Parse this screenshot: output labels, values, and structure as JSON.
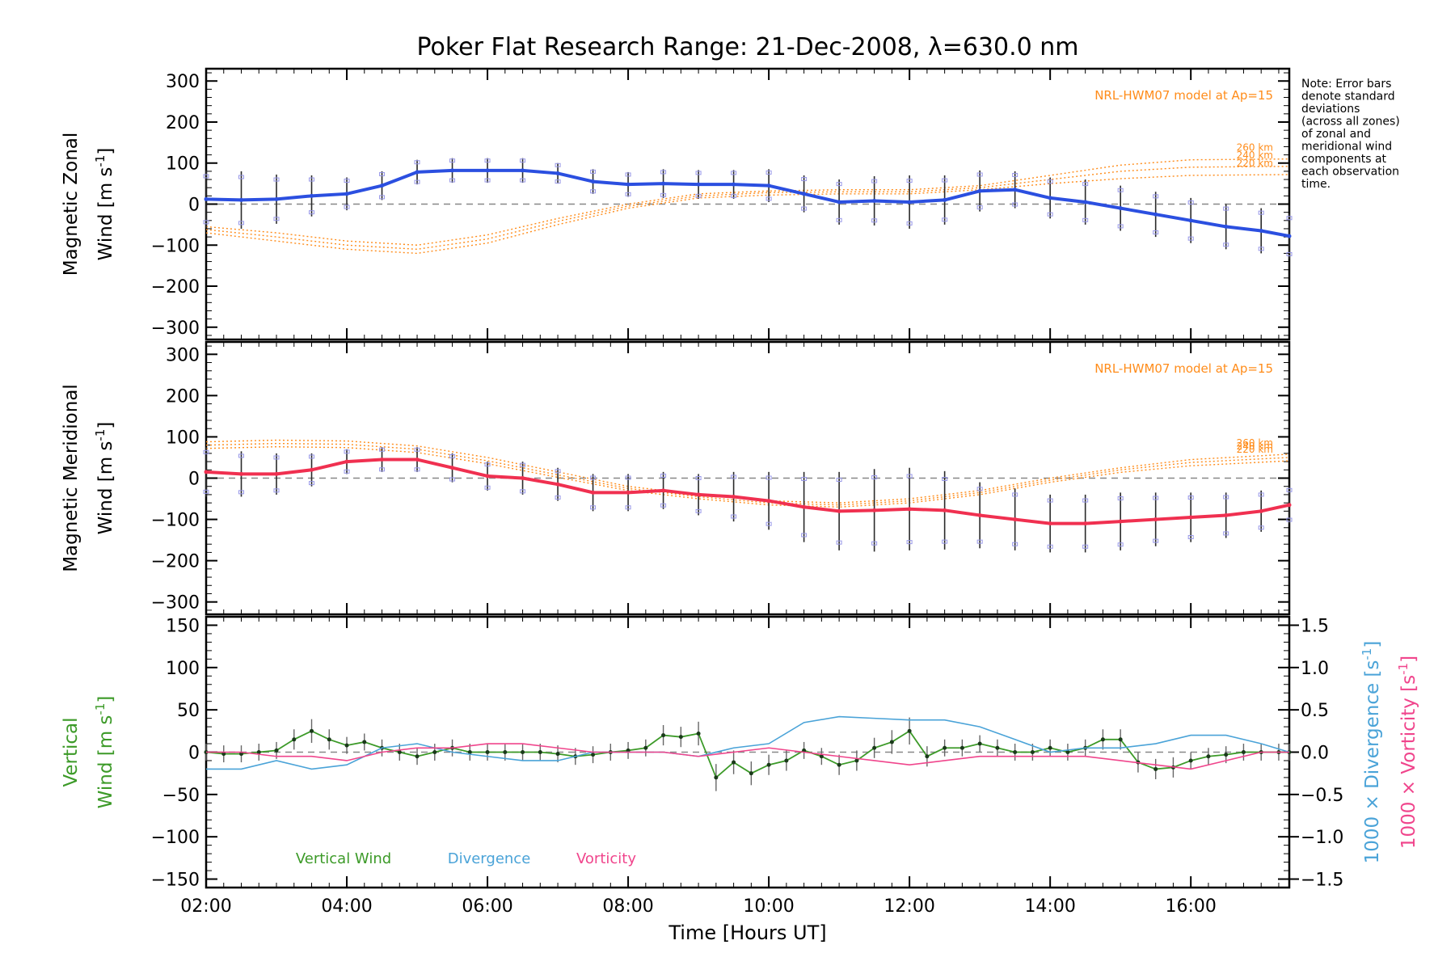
{
  "title": "Poker Flat Research Range: 21-Dec-2008, λ=630.0 nm",
  "note_lines": [
    "Note: Error bars",
    "denote standard",
    "deviations",
    "(across all zones)",
    "of zonal and",
    "meridional wind",
    "components at",
    "each observation",
    "time."
  ],
  "colors": {
    "zonal": "#2b4fe0",
    "meridional": "#f03050",
    "vertical": "#3c9a28",
    "divergence": "#4aa3d8",
    "vorticity": "#f0458c",
    "model": "#ff8c1a",
    "errorbar": "#2a2a2a",
    "zone_marker": "#9898e8"
  },
  "chart_data": [
    {
      "type": "line",
      "panel": "zonal",
      "ylabel_lines": [
        "Magnetic Zonal",
        "Wind [m s^-1]"
      ],
      "ylim": [
        -330,
        330
      ],
      "yticks": [
        "300",
        "200",
        "100",
        "0",
        "−100",
        "−200",
        "−300"
      ],
      "model_label": "NRL-HWM07 model at Ap=15",
      "model_curves": [
        {
          "label": "260 km",
          "x": [
            2,
            3,
            4,
            5,
            6,
            7,
            8,
            9,
            10,
            11,
            12,
            13,
            14,
            15,
            16,
            17.4
          ],
          "y": [
            -55,
            -70,
            -90,
            -100,
            -75,
            -35,
            0,
            25,
            32,
            35,
            35,
            45,
            70,
            95,
            108,
            110
          ]
        },
        {
          "label": "240 km",
          "x": [
            2,
            3,
            4,
            5,
            6,
            7,
            8,
            9,
            10,
            11,
            12,
            13,
            14,
            15,
            16,
            17.4
          ],
          "y": [
            -62,
            -80,
            -100,
            -110,
            -85,
            -42,
            -5,
            20,
            28,
            30,
            30,
            40,
            60,
            80,
            90,
            92
          ]
        },
        {
          "label": "220 km",
          "x": [
            2,
            3,
            4,
            5,
            6,
            7,
            8,
            9,
            10,
            11,
            12,
            13,
            14,
            15,
            16,
            17.4
          ],
          "y": [
            -70,
            -90,
            -110,
            -120,
            -95,
            -50,
            -10,
            15,
            22,
            25,
            25,
            35,
            50,
            62,
            70,
            72
          ]
        }
      ],
      "series": [
        {
          "name": "Zonal Wind",
          "x": [
            2,
            2.5,
            3,
            3.5,
            4,
            4.5,
            5,
            5.5,
            6,
            6.5,
            7,
            7.5,
            8,
            8.5,
            9,
            9.5,
            10,
            10.5,
            11,
            11.5,
            12,
            12.5,
            13,
            13.5,
            14,
            14.5,
            15,
            15.5,
            16,
            16.5,
            17,
            17.4
          ],
          "y": [
            12,
            10,
            12,
            20,
            25,
            45,
            78,
            82,
            82,
            82,
            75,
            55,
            48,
            50,
            48,
            48,
            45,
            25,
            5,
            8,
            5,
            10,
            32,
            35,
            15,
            5,
            -10,
            -25,
            -40,
            -55,
            -65,
            -78
          ],
          "err": [
            70,
            70,
            60,
            50,
            40,
            35,
            30,
            30,
            30,
            30,
            25,
            30,
            30,
            35,
            35,
            35,
            40,
            45,
            55,
            60,
            65,
            60,
            50,
            45,
            50,
            55,
            55,
            55,
            55,
            55,
            55,
            55
          ]
        }
      ]
    },
    {
      "type": "line",
      "panel": "meridional",
      "ylabel_lines": [
        "Magnetic Meridional",
        "Wind [m s^-1]"
      ],
      "ylim": [
        -330,
        330
      ],
      "yticks": [
        "300",
        "200",
        "100",
        "0",
        "−100",
        "−200",
        "−300"
      ],
      "model_label": "NRL-HWM07 model at Ap=15",
      "model_curves": [
        {
          "label": "260 km",
          "x": [
            2,
            3,
            4,
            5,
            6,
            7,
            8,
            9,
            10,
            11,
            12,
            13,
            14,
            15,
            16,
            17.4
          ],
          "y": [
            88,
            92,
            90,
            78,
            50,
            15,
            -20,
            -40,
            -55,
            -60,
            -50,
            -30,
            0,
            25,
            45,
            58
          ]
        },
        {
          "label": "240 km",
          "x": [
            2,
            3,
            4,
            5,
            6,
            7,
            8,
            9,
            10,
            11,
            12,
            13,
            14,
            15,
            16,
            17.4
          ],
          "y": [
            80,
            84,
            82,
            70,
            42,
            8,
            -25,
            -45,
            -60,
            -65,
            -55,
            -35,
            -5,
            20,
            38,
            50
          ]
        },
        {
          "label": "220 km",
          "x": [
            2,
            3,
            4,
            5,
            6,
            7,
            8,
            9,
            10,
            11,
            12,
            13,
            14,
            15,
            16,
            17.4
          ],
          "y": [
            72,
            76,
            74,
            62,
            35,
            2,
            -30,
            -50,
            -65,
            -70,
            -60,
            -40,
            -10,
            14,
            30,
            42
          ]
        }
      ],
      "series": [
        {
          "name": "Meridional Wind",
          "x": [
            2,
            2.5,
            3,
            3.5,
            4,
            4.5,
            5,
            5.5,
            6,
            6.5,
            7,
            7.5,
            8,
            8.5,
            9,
            9.5,
            10,
            10.5,
            11,
            11.5,
            12,
            12.5,
            13,
            13.5,
            14,
            14.5,
            15,
            15.5,
            16,
            16.5,
            17,
            17.4
          ],
          "y": [
            15,
            10,
            10,
            20,
            40,
            45,
            45,
            25,
            5,
            0,
            -15,
            -35,
            -35,
            -30,
            -40,
            -45,
            -55,
            -70,
            -80,
            -78,
            -75,
            -78,
            -90,
            -100,
            -110,
            -110,
            -105,
            -100,
            -95,
            -90,
            -80,
            -65
          ],
          "err": [
            60,
            55,
            50,
            40,
            30,
            30,
            30,
            35,
            35,
            40,
            40,
            45,
            45,
            45,
            50,
            60,
            70,
            85,
            95,
            100,
            100,
            95,
            80,
            75,
            70,
            70,
            70,
            65,
            60,
            55,
            50,
            45
          ]
        }
      ]
    },
    {
      "type": "line",
      "panel": "vertical",
      "ylabel_lines": [
        "Vertical",
        "Wind [m s^-1]"
      ],
      "ylim": [
        -160,
        160
      ],
      "yticks": [
        "150",
        "100",
        "50",
        "0",
        "−50",
        "−100",
        "−150"
      ],
      "y2label": [
        "1000 × Divergence [s^-1]",
        "1000 × Vorticity [s^-1]"
      ],
      "y2lim": [
        -1.6,
        1.6
      ],
      "y2ticks": [
        "1.5",
        "1.0",
        "0.5",
        "0.0",
        "−0.5",
        "−1.0",
        "−1.5"
      ],
      "legend": [
        "Vertical Wind",
        "Divergence",
        "Vorticity"
      ],
      "series": [
        {
          "name": "Vertical Wind",
          "x": [
            2,
            2.25,
            2.5,
            2.75,
            3,
            3.25,
            3.5,
            3.75,
            4,
            4.25,
            4.5,
            4.75,
            5,
            5.25,
            5.5,
            5.75,
            6,
            6.25,
            6.5,
            6.75,
            7,
            7.25,
            7.5,
            7.75,
            8,
            8.25,
            8.5,
            8.75,
            9,
            9.25,
            9.5,
            9.75,
            10,
            10.25,
            10.5,
            10.75,
            11,
            11.25,
            11.5,
            11.75,
            12,
            12.25,
            12.5,
            12.75,
            13,
            13.25,
            13.5,
            13.75,
            14,
            14.25,
            14.5,
            14.75,
            15,
            15.25,
            15.5,
            15.75,
            16,
            16.25,
            16.5,
            16.75,
            17,
            17.25,
            17.4
          ],
          "y": [
            0,
            -2,
            -2,
            0,
            2,
            15,
            25,
            15,
            8,
            12,
            5,
            0,
            -5,
            0,
            5,
            0,
            0,
            0,
            0,
            0,
            -2,
            -5,
            -3,
            0,
            2,
            5,
            20,
            18,
            22,
            -30,
            -12,
            -25,
            -15,
            -10,
            2,
            -5,
            -15,
            -10,
            5,
            12,
            25,
            -5,
            5,
            5,
            10,
            5,
            0,
            0,
            5,
            0,
            5,
            15,
            15,
            -12,
            -20,
            -18,
            -10,
            -5,
            -3,
            0,
            0,
            0,
            0
          ],
          "err": [
            10,
            10,
            10,
            10,
            10,
            12,
            14,
            12,
            10,
            10,
            10,
            10,
            10,
            10,
            10,
            10,
            10,
            10,
            10,
            10,
            10,
            10,
            10,
            10,
            10,
            10,
            12,
            12,
            14,
            16,
            14,
            14,
            12,
            12,
            10,
            10,
            12,
            12,
            12,
            14,
            16,
            12,
            10,
            10,
            10,
            10,
            10,
            10,
            10,
            10,
            10,
            12,
            12,
            12,
            12,
            12,
            10,
            10,
            10,
            10,
            10,
            10,
            10
          ]
        },
        {
          "name": "Divergence",
          "x": [
            2,
            2.5,
            3,
            3.5,
            4,
            4.5,
            5,
            5.5,
            6,
            6.5,
            7,
            7.5,
            8,
            8.5,
            9,
            9.5,
            10,
            10.5,
            11,
            11.5,
            12,
            12.5,
            13,
            13.5,
            14,
            14.5,
            15,
            15.5,
            16,
            16.5,
            17,
            17.4
          ],
          "y": [
            -0.2,
            -0.2,
            -0.1,
            -0.2,
            -0.15,
            0.05,
            0.1,
            0.0,
            -0.05,
            -0.1,
            -0.1,
            0.0,
            0.0,
            0.0,
            -0.05,
            0.05,
            0.1,
            0.35,
            0.42,
            0.4,
            0.38,
            0.38,
            0.3,
            0.15,
            0.0,
            0.05,
            0.05,
            0.1,
            0.2,
            0.2,
            0.1,
            0.0
          ]
        },
        {
          "name": "Vorticity",
          "x": [
            2,
            2.5,
            3,
            3.5,
            4,
            4.5,
            5,
            5.5,
            6,
            6.5,
            7,
            7.5,
            8,
            8.5,
            9,
            9.5,
            10,
            10.5,
            11,
            11.5,
            12,
            12.5,
            13,
            13.5,
            14,
            14.5,
            15,
            15.5,
            16,
            16.5,
            17,
            17.4
          ],
          "y": [
            0.0,
            0.0,
            -0.05,
            -0.05,
            -0.1,
            0.0,
            0.05,
            0.05,
            0.1,
            0.1,
            0.05,
            0.0,
            0.0,
            0.0,
            -0.05,
            0.0,
            0.05,
            0.0,
            -0.05,
            -0.1,
            -0.15,
            -0.1,
            -0.05,
            -0.05,
            -0.05,
            -0.05,
            -0.1,
            -0.15,
            -0.2,
            -0.1,
            0.0,
            0.0
          ]
        }
      ]
    }
  ],
  "xaxis": {
    "label": "Time [Hours UT]",
    "range": [
      2,
      17.4
    ],
    "ticks": [
      {
        "v": 2,
        "label": "02:00"
      },
      {
        "v": 4,
        "label": "04:00"
      },
      {
        "v": 6,
        "label": "06:00"
      },
      {
        "v": 8,
        "label": "08:00"
      },
      {
        "v": 10,
        "label": "10:00"
      },
      {
        "v": 12,
        "label": "12:00"
      },
      {
        "v": 14,
        "label": "14:00"
      },
      {
        "v": 16,
        "label": "16:00"
      }
    ]
  }
}
